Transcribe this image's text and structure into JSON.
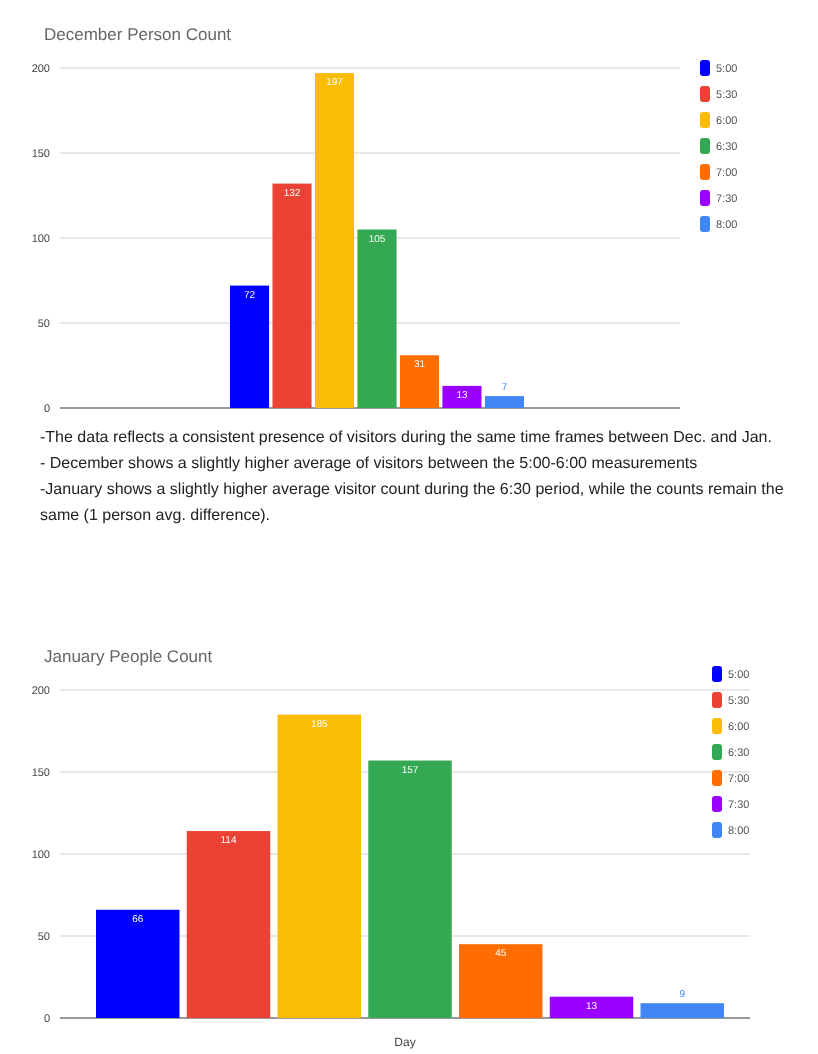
{
  "chart_data": [
    {
      "type": "bar",
      "title": "December Person Count",
      "categories": [
        null
      ],
      "ylim": [
        0,
        200
      ],
      "yticks": [
        0,
        50,
        100,
        150,
        200
      ],
      "grid": "y",
      "legend": "right",
      "data_labels": true,
      "series": [
        {
          "name": "5:00",
          "color": "#0000ff",
          "values": [
            72
          ]
        },
        {
          "name": "5:30",
          "color": "#ea4335",
          "values": [
            132
          ]
        },
        {
          "name": "6:00",
          "color": "#fbbc04",
          "values": [
            197
          ]
        },
        {
          "name": "6:30",
          "color": "#34a853",
          "values": [
            105
          ]
        },
        {
          "name": "7:00",
          "color": "#ff6d01",
          "values": [
            31
          ]
        },
        {
          "name": "7:30",
          "color": "#9900ff",
          "values": [
            13
          ]
        },
        {
          "name": "8:00",
          "color": "#4285f4",
          "values": [
            7
          ]
        }
      ],
      "annotations": [
        "-The data reflects a consistent presence of visitors during the same time frames between Dec. and Jan.",
        "- December shows a slightly higher average of visitors between the 5:00-6:00 measurements",
        "-January shows a slightly higher average visitor count during the 6:30 period, while the counts remain the same (1 person avg. difference)."
      ]
    },
    {
      "type": "bar",
      "title": "January People Count",
      "xlabel": "Day",
      "categories": [
        null
      ],
      "ylim": [
        0,
        200
      ],
      "yticks": [
        0,
        50,
        100,
        150,
        200
      ],
      "grid": "y",
      "legend": "right",
      "data_labels": true,
      "series": [
        {
          "name": "5:00",
          "color": "#0000ff",
          "values": [
            66
          ]
        },
        {
          "name": "5:30",
          "color": "#ea4335",
          "values": [
            114
          ]
        },
        {
          "name": "6:00",
          "color": "#fbbc04",
          "values": [
            185
          ]
        },
        {
          "name": "6:30",
          "color": "#34a853",
          "values": [
            157
          ]
        },
        {
          "name": "7:00",
          "color": "#ff6d01",
          "values": [
            45
          ]
        },
        {
          "name": "7:30",
          "color": "#9900ff",
          "values": [
            13
          ]
        },
        {
          "name": "8:00",
          "color": "#4285f4",
          "values": [
            9
          ]
        }
      ]
    }
  ]
}
